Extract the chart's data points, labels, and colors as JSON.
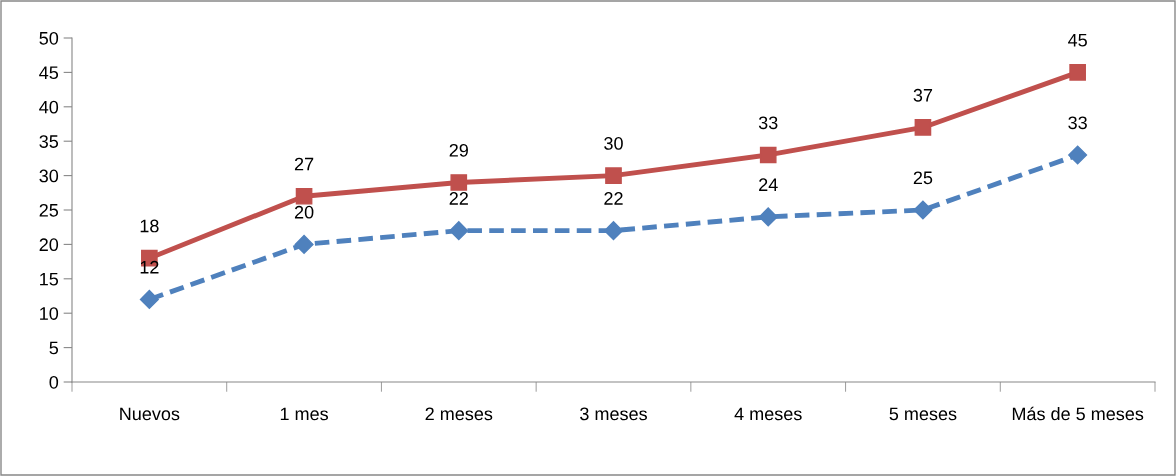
{
  "chart_data": {
    "type": "line",
    "categories": [
      "Nuevos",
      "1 mes",
      "2 meses",
      "3 meses",
      "4 meses",
      "5 meses",
      "Más de 5 meses"
    ],
    "series": [
      {
        "color": "#4f81bd",
        "values": [
          12,
          20,
          22,
          22,
          24,
          25,
          33
        ],
        "marker": "diamond",
        "line_style": "dashed"
      },
      {
        "color": "#c0504d",
        "values": [
          18,
          27,
          29,
          30,
          33,
          37,
          45
        ],
        "marker": "square",
        "line_style": "solid"
      }
    ],
    "ylim": [
      0,
      50
    ],
    "yticks": [
      0,
      5,
      10,
      15,
      20,
      25,
      30,
      35,
      40,
      45,
      50
    ],
    "grid": false,
    "legend": false,
    "data_labels": true
  }
}
